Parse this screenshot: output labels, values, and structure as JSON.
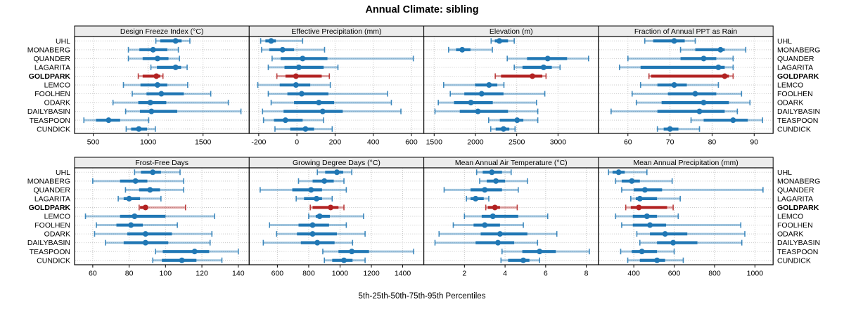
{
  "title": "Annual Climate: sibling",
  "caption": "5th-25th-50th-75th-95th Percentiles",
  "colors": {
    "series_blue": "#2077b4",
    "highlight_red": "#b22222",
    "strip_bg": "#ececec",
    "grid": "#c9c9c9",
    "panel_border": "#000000",
    "text": "#000000"
  },
  "sites": [
    "UHL",
    "MONABERG",
    "QUANDER",
    "LAGARITA",
    "GOLDPARK",
    "LEMCO",
    "FOOLHEN",
    "ODARK",
    "DAILYBASIN",
    "TEASPOON",
    "CUNDICK"
  ],
  "highlight_site": "GOLDPARK",
  "chart_data": [
    {
      "type": "dotplot-percentiles",
      "title": "Design Freeze Index (°C)",
      "ticks": [
        500,
        1000,
        1500
      ],
      "xlim": [
        330,
        1920
      ],
      "values": {
        "UHL": [
          1070,
          1110,
          1250,
          1305,
          1380
        ],
        "MONABERG": [
          820,
          920,
          1045,
          1175,
          1275
        ],
        "QUANDER": [
          820,
          950,
          1085,
          1185,
          1285
        ],
        "LAGARITA": [
          1025,
          1080,
          1250,
          1300,
          1355
        ],
        "GOLDPARK": [
          910,
          950,
          1075,
          1110,
          1135
        ],
        "LEMCO": [
          775,
          930,
          1085,
          1175,
          1360
        ],
        "FOOLHEN": [
          855,
          985,
          1120,
          1325,
          1570
        ],
        "ODARK": [
          680,
          910,
          1020,
          1165,
          1730
        ],
        "DAILYBASIN": [
          795,
          925,
          1030,
          1265,
          1845
        ],
        "TEASPOON": [
          415,
          525,
          640,
          745,
          1005
        ],
        "CUNDICK": [
          800,
          845,
          915,
          990,
          1065
        ]
      }
    },
    {
      "type": "dotplot-percentiles",
      "title": "Effective Precipitation (mm)",
      "ticks": [
        -200,
        0,
        200,
        400,
        600
      ],
      "xlim": [
        -250,
        665
      ],
      "values": {
        "UHL": [
          -190,
          -165,
          -135,
          -110,
          30
        ],
        "MONABERG": [
          -185,
          -145,
          -75,
          -15,
          145
        ],
        "QUANDER": [
          -130,
          -85,
          30,
          160,
          610
        ],
        "LAGARITA": [
          -150,
          -65,
          10,
          140,
          215
        ],
        "GOLDPARK": [
          -105,
          -60,
          -5,
          130,
          170
        ],
        "LEMCO": [
          -205,
          -90,
          -5,
          70,
          175
        ],
        "FOOLHEN": [
          -150,
          -50,
          25,
          165,
          475
        ],
        "ODARK": [
          -135,
          -15,
          115,
          195,
          495
        ],
        "DAILYBASIN": [
          -180,
          -70,
          135,
          240,
          545
        ],
        "TEASPOON": [
          -175,
          -120,
          -60,
          30,
          140
        ],
        "CUNDICK": [
          -115,
          -35,
          45,
          90,
          185
        ]
      }
    },
    {
      "type": "dotplot-percentiles",
      "title": "Elevation (m)",
      "ticks": [
        1500,
        2000,
        2500,
        3000
      ],
      "xlim": [
        1375,
        3490
      ],
      "values": {
        "UHL": [
          2190,
          2235,
          2290,
          2395,
          2470
        ],
        "MONABERG": [
          1675,
          1765,
          1840,
          1940,
          2205
        ],
        "QUANDER": [
          2385,
          2625,
          2875,
          3110,
          3370
        ],
        "LAGARITA": [
          2470,
          2570,
          2825,
          2925,
          3025
        ],
        "GOLDPARK": [
          2240,
          2310,
          2690,
          2810,
          2855
        ],
        "LEMCO": [
          1615,
          1995,
          2165,
          2265,
          2345
        ],
        "FOOLHEN": [
          1695,
          1865,
          2075,
          2340,
          2840
        ],
        "ODARK": [
          1550,
          1740,
          1945,
          2210,
          2740
        ],
        "DAILYBASIN": [
          1510,
          1810,
          2030,
          2395,
          2755
        ],
        "TEASPOON": [
          2160,
          2295,
          2505,
          2580,
          2755
        ],
        "CUNDICK": [
          2185,
          2245,
          2340,
          2410,
          2480
        ]
      }
    },
    {
      "type": "dotplot-percentiles",
      "title": "Fraction of Annual PPT as Rain",
      "ticks": [
        60,
        70,
        80,
        90
      ],
      "xlim": [
        53,
        94.5
      ],
      "values": {
        "UHL": [
          64,
          66,
          71,
          73.5,
          76
        ],
        "MONABERG": [
          72.5,
          76,
          82,
          83,
          88
        ],
        "QUANDER": [
          60,
          72.5,
          78,
          81,
          85
        ],
        "LAGARITA": [
          58,
          63,
          81.5,
          83,
          85
        ],
        "GOLDPARK": [
          65,
          65.5,
          83,
          84,
          85
        ],
        "LEMCO": [
          63,
          67,
          71,
          74,
          81.5
        ],
        "FOOLHEN": [
          61,
          69.5,
          76,
          81,
          87
        ],
        "ODARK": [
          62,
          68,
          78,
          84,
          89
        ],
        "DAILYBASIN": [
          56,
          67,
          77,
          83,
          86
        ],
        "TEASPOON": [
          75,
          78,
          85,
          88.5,
          92
        ],
        "CUNDICK": [
          67,
          68.5,
          70,
          72,
          77
        ]
      }
    },
    {
      "type": "dotplot-percentiles",
      "title": "Frost-Free Days",
      "ticks": [
        60,
        80,
        100,
        120,
        140
      ],
      "xlim": [
        50,
        146
      ],
      "values": {
        "UHL": [
          83,
          86.5,
          93,
          97.5,
          108
        ],
        "MONABERG": [
          60,
          75,
          83.5,
          90,
          110
        ],
        "QUANDER": [
          78,
          85.5,
          91.5,
          97,
          110
        ],
        "LAGARITA": [
          74,
          77,
          80,
          86,
          97.5
        ],
        "GOLDPARK": [
          85.5,
          86,
          89,
          90,
          111
        ],
        "LEMCO": [
          56,
          75,
          83,
          100,
          127
        ],
        "FOOLHEN": [
          62,
          73,
          81,
          87.5,
          106.5
        ],
        "ODARK": [
          61,
          79,
          89,
          103.5,
          125.5
        ],
        "DAILYBASIN": [
          67,
          77,
          89,
          101.5,
          124.5
        ],
        "TEASPOON": [
          94.5,
          98.5,
          116,
          124,
          140
        ],
        "CUNDICK": [
          93,
          98,
          109,
          117,
          131
        ]
      }
    },
    {
      "type": "dotplot-percentiles",
      "title": "Growing Degree Days (°C)",
      "ticks": [
        600,
        800,
        1000,
        1200,
        1400
      ],
      "xlim": [
        420,
        1535
      ],
      "values": {
        "UHL": [
          855,
          905,
          980,
          1020,
          1075
        ],
        "MONABERG": [
          735,
          825,
          900,
          960,
          1025
        ],
        "QUANDER": [
          490,
          695,
          815,
          885,
          1040
        ],
        "LAGARITA": [
          720,
          770,
          850,
          885,
          950
        ],
        "GOLDPARK": [
          810,
          825,
          940,
          990,
          1025
        ],
        "LEMCO": [
          800,
          845,
          870,
          935,
          1150
        ],
        "FOOLHEN": [
          550,
          735,
          825,
          930,
          1040
        ],
        "ODARK": [
          595,
          725,
          825,
          980,
          1160
        ],
        "DAILYBASIN": [
          510,
          750,
          855,
          965,
          1080
        ],
        "TEASPOON": [
          890,
          990,
          1075,
          1185,
          1470
        ],
        "CUNDICK": [
          900,
          950,
          1025,
          1080,
          1160
        ]
      }
    },
    {
      "type": "dotplot-percentiles",
      "title": "Mean Annual Air Temperature (°C)",
      "ticks": [
        2,
        4,
        6,
        8
      ],
      "xlim": [
        0,
        8.6
      ],
      "values": {
        "UHL": [
          2.6,
          2.9,
          3.35,
          3.85,
          4.3
        ],
        "MONABERG": [
          2.75,
          3.1,
          3.55,
          4.0,
          5.1
        ],
        "QUANDER": [
          1.0,
          2.3,
          3.0,
          3.85,
          4.65
        ],
        "LAGARITA": [
          2.1,
          2.3,
          2.55,
          2.95,
          3.2
        ],
        "GOLDPARK": [
          3.05,
          3.15,
          3.5,
          3.75,
          4.6
        ],
        "LEMCO": [
          2.0,
          2.85,
          3.4,
          4.65,
          6.1
        ],
        "FOOLHEN": [
          1.45,
          2.45,
          3.0,
          3.75,
          4.9
        ],
        "ODARK": [
          0.75,
          2.8,
          3.75,
          5.1,
          6.55
        ],
        "DAILYBASIN": [
          0.55,
          2.55,
          3.65,
          4.45,
          5.6
        ],
        "TEASPOON": [
          3.85,
          4.85,
          5.7,
          6.5,
          8.15
        ],
        "CUNDICK": [
          3.8,
          4.15,
          4.9,
          5.2,
          5.7
        ]
      }
    },
    {
      "type": "dotplot-percentiles",
      "title": "Mean Annual Precipitation (mm)",
      "ticks": [
        400,
        600,
        800,
        1000
      ],
      "xlim": [
        225,
        1090
      ],
      "values": {
        "UHL": [
          275,
          295,
          325,
          355,
          465
        ],
        "MONABERG": [
          310,
          340,
          390,
          430,
          590
        ],
        "QUANDER": [
          340,
          400,
          455,
          540,
          1040
        ],
        "LAGARITA": [
          385,
          410,
          430,
          515,
          630
        ],
        "GOLDPARK": [
          360,
          385,
          425,
          565,
          595
        ],
        "LEMCO": [
          310,
          395,
          465,
          515,
          620
        ],
        "FOOLHEN": [
          340,
          395,
          480,
          560,
          930
        ],
        "ODARK": [
          415,
          480,
          555,
          665,
          950
        ],
        "DAILYBASIN": [
          430,
          515,
          595,
          715,
          935
        ],
        "TEASPOON": [
          335,
          390,
          440,
          515,
          600
        ],
        "CUNDICK": [
          370,
          430,
          515,
          555,
          645
        ]
      }
    }
  ]
}
